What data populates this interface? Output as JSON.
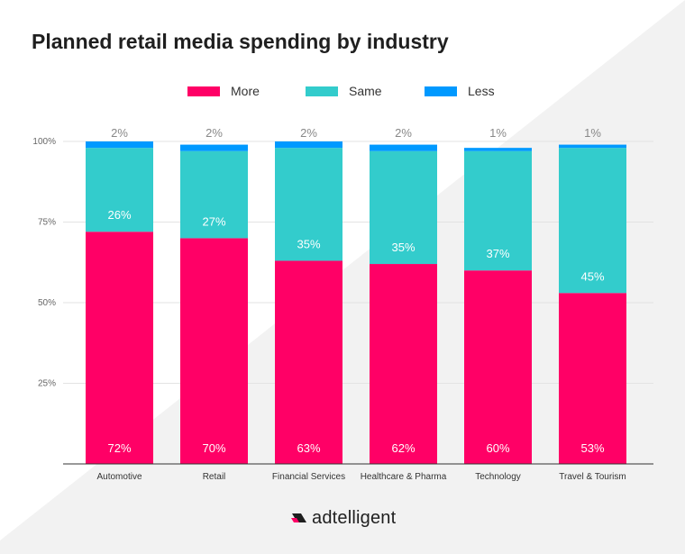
{
  "chart_data": {
    "type": "bar",
    "stacked": true,
    "title": "Planned retail media spending by industry",
    "categories": [
      "Automotive",
      "Retail",
      "Financial Services",
      "Healthcare & Pharma",
      "Technology",
      "Travel & Tourism"
    ],
    "series": [
      {
        "name": "More",
        "color": "#ff0066",
        "values": [
          72,
          70,
          63,
          62,
          60,
          53
        ],
        "labels": [
          "72%",
          "70%",
          "63%",
          "62%",
          "60%",
          "53%"
        ]
      },
      {
        "name": "Same",
        "color": "#33cccc",
        "values": [
          26,
          27,
          35,
          35,
          37,
          45
        ],
        "labels": [
          "26%",
          "27%",
          "35%",
          "35%",
          "37%",
          "45%"
        ]
      },
      {
        "name": "Less",
        "color": "#0099ff",
        "values": [
          2,
          2,
          2,
          2,
          1,
          1
        ],
        "labels": [
          "2%",
          "2%",
          "2%",
          "2%",
          "1%",
          "1%"
        ]
      }
    ],
    "yticks": [
      25,
      50,
      75,
      100
    ],
    "ytick_labels": [
      "25%",
      "50%",
      "75%",
      "100%"
    ],
    "ylim": [
      0,
      100
    ],
    "grid": true,
    "legend_position": "top-center"
  },
  "brand": {
    "name": "adtelligent",
    "logo_color": "#ff0066"
  }
}
